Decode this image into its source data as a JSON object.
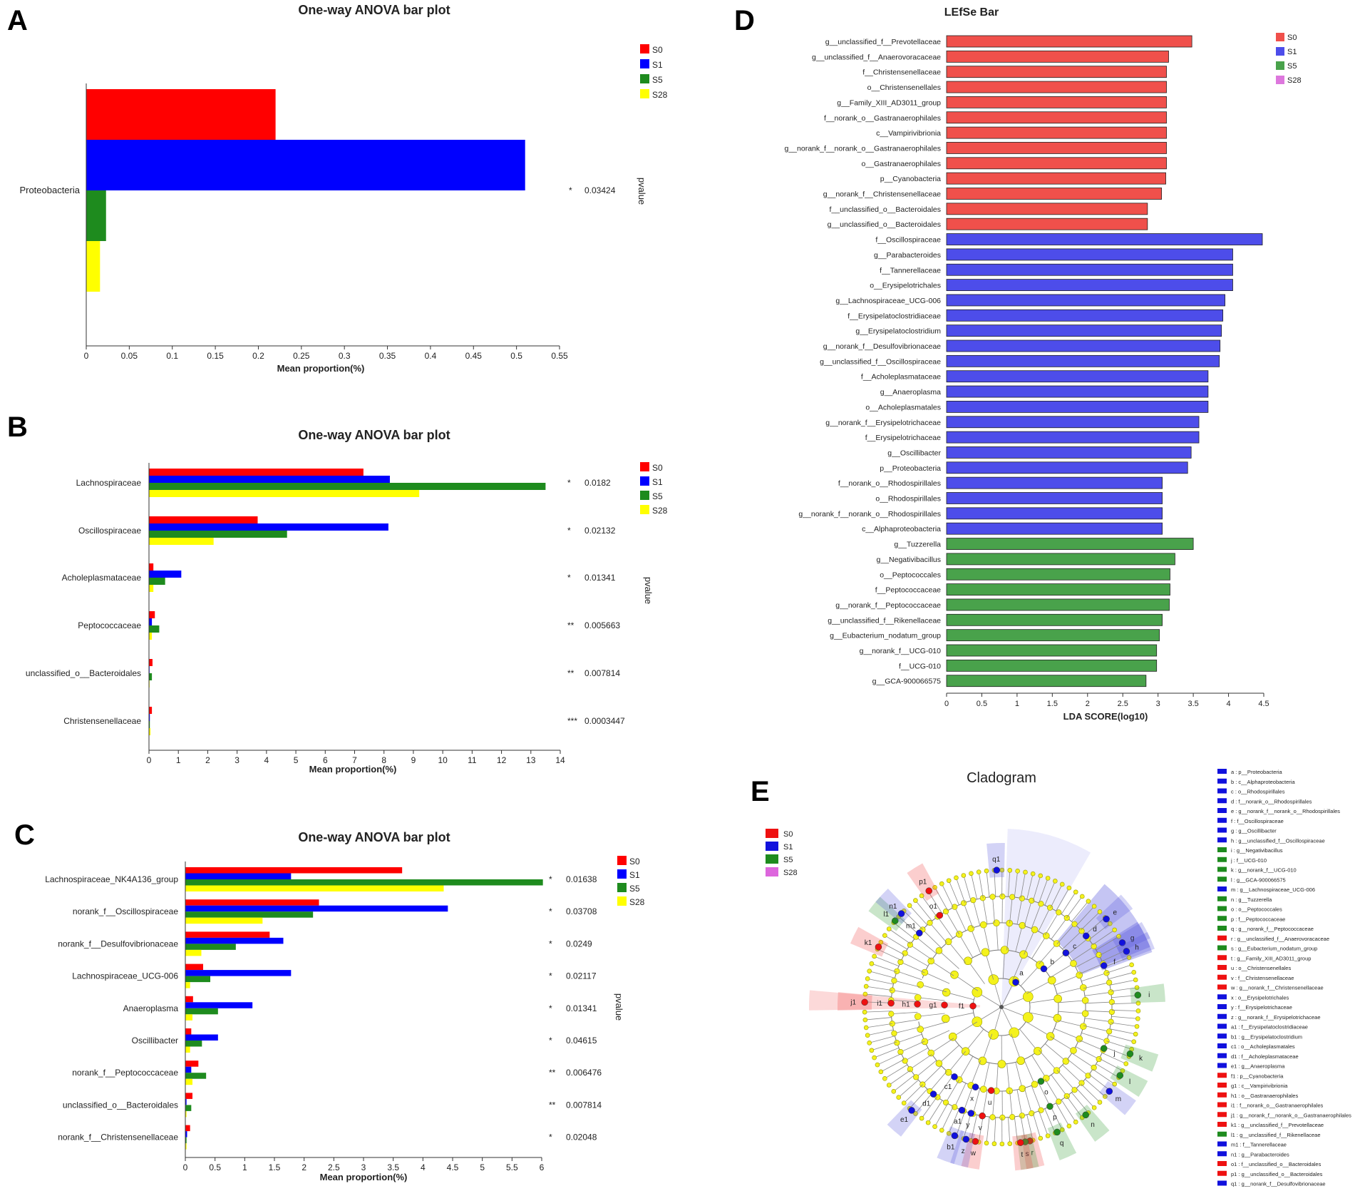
{
  "colors": {
    "S0": "#ff0000",
    "S1": "#0000ff",
    "S5": "#1e8b1e",
    "S28": "#ffff00",
    "ld_S0": "#f0504b",
    "ld_S1": "#4d4dea",
    "ld_S5": "#49a24b",
    "ld_S28": "#dd77dd",
    "node": "#f4f21c",
    "nodeStroke": "#9a9a00"
  },
  "chart_data": [
    {
      "id": "A",
      "panel_label": "A",
      "type": "bar",
      "orientation": "horizontal",
      "title": "One-way ANOVA bar plot",
      "xlabel": "Mean proportion(%)",
      "side_label": "pvalue",
      "xlim": [
        0,
        0.55
      ],
      "xticks": [
        0,
        0.05,
        0.1,
        0.15,
        0.2,
        0.25,
        0.3,
        0.35,
        0.4,
        0.45,
        0.5,
        0.55
      ],
      "xtick_labels": [
        "0",
        "0.05",
        "0.1",
        "0.15",
        "0.2",
        "0.25",
        "0.3",
        "0.35",
        "0.4",
        "0.45",
        "0.5",
        "0.55"
      ],
      "legend": [
        "S0",
        "S1",
        "S5",
        "S28"
      ],
      "categories": [
        "Proteobacteria"
      ],
      "series": [
        {
          "name": "S0",
          "values": [
            0.22
          ]
        },
        {
          "name": "S1",
          "values": [
            0.51
          ]
        },
        {
          "name": "S5",
          "values": [
            0.023
          ]
        },
        {
          "name": "S28",
          "values": [
            0.016
          ]
        }
      ],
      "sig": [
        "*"
      ],
      "pvalues": [
        "0.03424"
      ]
    },
    {
      "id": "B",
      "panel_label": "B",
      "type": "bar",
      "orientation": "horizontal",
      "title": "One-way ANOVA bar plot",
      "xlabel": "Mean proportion(%)",
      "side_label": "pvalue",
      "xlim": [
        0,
        14
      ],
      "xticks": [
        0,
        1,
        2,
        3,
        4,
        5,
        6,
        7,
        8,
        9,
        10,
        11,
        12,
        13,
        14
      ],
      "xtick_labels": [
        "0",
        "1",
        "2",
        "3",
        "4",
        "5",
        "6",
        "7",
        "8",
        "9",
        "10",
        "11",
        "12",
        "13",
        "14"
      ],
      "legend": [
        "S0",
        "S1",
        "S5",
        "S28"
      ],
      "categories": [
        "Lachnospiraceae",
        "Oscillospiraceae",
        "Acholeplasmataceae",
        "Peptococcaceae",
        "unclassified_o__Bacteroidales",
        "Christensenellaceae"
      ],
      "series": [
        {
          "name": "S0",
          "values": [
            7.3,
            3.7,
            0.15,
            0.2,
            0.12,
            0.1
          ]
        },
        {
          "name": "S1",
          "values": [
            8.2,
            8.15,
            1.1,
            0.1,
            0.02,
            0.03
          ]
        },
        {
          "name": "S5",
          "values": [
            13.5,
            4.7,
            0.55,
            0.35,
            0.1,
            0.03
          ]
        },
        {
          "name": "S28",
          "values": [
            9.2,
            2.2,
            0.15,
            0.1,
            0.02,
            0.05
          ]
        }
      ],
      "sig": [
        "*",
        "*",
        "*",
        "**",
        "**",
        "***"
      ],
      "pvalues": [
        "0.0182",
        "0.02132",
        "0.01341",
        "0.005663",
        "0.007814",
        "0.0003447"
      ]
    },
    {
      "id": "C",
      "panel_label": "C",
      "type": "bar",
      "orientation": "horizontal",
      "title": "One-way ANOVA bar plot",
      "xlabel": "Mean proportion(%)",
      "side_label": "pvalue",
      "xlim": [
        0,
        6
      ],
      "xticks": [
        0,
        0.5,
        1,
        1.5,
        2,
        2.5,
        3,
        3.5,
        4,
        4.5,
        5,
        5.5,
        6
      ],
      "xtick_labels": [
        "0",
        "0.5",
        "1",
        "1.5",
        "2",
        "2.5",
        "3",
        "3.5",
        "4",
        "4.5",
        "5",
        "5.5",
        "6"
      ],
      "legend": [
        "S0",
        "S1",
        "S5",
        "S28"
      ],
      "categories": [
        "Lachnospiraceae_NK4A136_group",
        "norank_f__Oscillospiraceae",
        "norank_f__Desulfovibrionaceae",
        "Lachnospiraceae_UCG-006",
        "Anaeroplasma",
        "Oscillibacter",
        "norank_f__Peptococcaceae",
        "unclassified_o__Bacteroidales",
        "norank_f__Christensenellaceae"
      ],
      "series": [
        {
          "name": "S0",
          "values": [
            3.65,
            2.25,
            1.42,
            0.3,
            0.13,
            0.1,
            0.22,
            0.12,
            0.08
          ]
        },
        {
          "name": "S1",
          "values": [
            1.78,
            4.42,
            1.65,
            1.78,
            1.13,
            0.55,
            0.1,
            0.02,
            0.03
          ]
        },
        {
          "name": "S5",
          "values": [
            6.02,
            2.15,
            0.85,
            0.42,
            0.55,
            0.28,
            0.35,
            0.1,
            0.02
          ]
        },
        {
          "name": "S28",
          "values": [
            4.35,
            1.3,
            0.27,
            0.08,
            0.12,
            0.08,
            0.12,
            0.02,
            0.02
          ]
        }
      ],
      "sig": [
        "*",
        "*",
        "*",
        "*",
        "*",
        "*",
        "**",
        "**",
        "*"
      ],
      "pvalues": [
        "0.01638",
        "0.03708",
        "0.0249",
        "0.02117",
        "0.01341",
        "0.04615",
        "0.006476",
        "0.007814",
        "0.02048"
      ]
    },
    {
      "id": "D",
      "panel_label": "D",
      "type": "bar",
      "orientation": "horizontal",
      "title": "LEfSe Bar",
      "xlabel": "LDA SCORE(log10)",
      "xlim": [
        0,
        4.5
      ],
      "xticks": [
        0,
        0.5,
        1,
        1.5,
        2,
        2.5,
        3,
        3.5,
        4,
        4.5
      ],
      "xtick_labels": [
        "0",
        "0.5",
        "1",
        "1.5",
        "2",
        "2.5",
        "3",
        "3.5",
        "4",
        "4.5"
      ],
      "legend": [
        "S0",
        "S1",
        "S5",
        "S28"
      ],
      "items": [
        {
          "label": "g__unclassified_f__Prevotellaceae",
          "group": "S0",
          "value": 3.48
        },
        {
          "label": "g__unclassified_f__Anaerovoracaceae",
          "group": "S0",
          "value": 3.15
        },
        {
          "label": "f__Christensenellaceae",
          "group": "S0",
          "value": 3.12
        },
        {
          "label": "o__Christensenellales",
          "group": "S0",
          "value": 3.12
        },
        {
          "label": "g__Family_XIII_AD3011_group",
          "group": "S0",
          "value": 3.12
        },
        {
          "label": "f__norank_o__Gastranaerophilales",
          "group": "S0",
          "value": 3.12
        },
        {
          "label": "c__Vampirivibrionia",
          "group": "S0",
          "value": 3.12
        },
        {
          "label": "g__norank_f__norank_o__Gastranaerophilales",
          "group": "S0",
          "value": 3.12
        },
        {
          "label": "o__Gastranaerophilales",
          "group": "S0",
          "value": 3.12
        },
        {
          "label": "p__Cyanobacteria",
          "group": "S0",
          "value": 3.11
        },
        {
          "label": "g__norank_f__Christensenellaceae",
          "group": "S0",
          "value": 3.05
        },
        {
          "label": "f__unclassified_o__Bacteroidales",
          "group": "S0",
          "value": 2.85
        },
        {
          "label": "g__unclassified_o__Bacteroidales",
          "group": "S0",
          "value": 2.85
        },
        {
          "label": "f__Oscillospiraceae",
          "group": "S1",
          "value": 4.48
        },
        {
          "label": "g__Parabacteroides",
          "group": "S1",
          "value": 4.06
        },
        {
          "label": "f__Tannerellaceae",
          "group": "S1",
          "value": 4.06
        },
        {
          "label": "o__Erysipelotrichales",
          "group": "S1",
          "value": 4.06
        },
        {
          "label": "g__Lachnospiraceae_UCG-006",
          "group": "S1",
          "value": 3.95
        },
        {
          "label": "f__Erysipelatoclostridiaceae",
          "group": "S1",
          "value": 3.92
        },
        {
          "label": "g__Erysipelatoclostridium",
          "group": "S1",
          "value": 3.9
        },
        {
          "label": "g__norank_f__Desulfovibrionaceae",
          "group": "S1",
          "value": 3.88
        },
        {
          "label": "g__unclassified_f__Oscillospiraceae",
          "group": "S1",
          "value": 3.87
        },
        {
          "label": "f__Acholeplasmataceae",
          "group": "S1",
          "value": 3.71
        },
        {
          "label": "g__Anaeroplasma",
          "group": "S1",
          "value": 3.71
        },
        {
          "label": "o__Acholeplasmatales",
          "group": "S1",
          "value": 3.71
        },
        {
          "label": "g__norank_f__Erysipelotrichaceae",
          "group": "S1",
          "value": 3.58
        },
        {
          "label": "f__Erysipelotrichaceae",
          "group": "S1",
          "value": 3.58
        },
        {
          "label": "g__Oscillibacter",
          "group": "S1",
          "value": 3.47
        },
        {
          "label": "p__Proteobacteria",
          "group": "S1",
          "value": 3.42
        },
        {
          "label": "f__norank_o__Rhodospirillales",
          "group": "S1",
          "value": 3.06
        },
        {
          "label": "o__Rhodospirillales",
          "group": "S1",
          "value": 3.06
        },
        {
          "label": "g__norank_f__norank_o__Rhodospirillales",
          "group": "S1",
          "value": 3.06
        },
        {
          "label": "c__Alphaproteobacteria",
          "group": "S1",
          "value": 3.06
        },
        {
          "label": "g__Tuzzerella",
          "group": "S5",
          "value": 3.5
        },
        {
          "label": "g__Negativibacillus",
          "group": "S5",
          "value": 3.24
        },
        {
          "label": "o__Peptococcales",
          "group": "S5",
          "value": 3.17
        },
        {
          "label": "f__Peptococcaceae",
          "group": "S5",
          "value": 3.17
        },
        {
          "label": "g__norank_f__Peptococcaceae",
          "group": "S5",
          "value": 3.16
        },
        {
          "label": "g__unclassified_f__Rikenellaceae",
          "group": "S5",
          "value": 3.06
        },
        {
          "label": "g__Eubacterium_nodatum_group",
          "group": "S5",
          "value": 3.02
        },
        {
          "label": "g__norank_f__UCG-010",
          "group": "S5",
          "value": 2.98
        },
        {
          "label": "f__UCG-010",
          "group": "S5",
          "value": 2.98
        },
        {
          "label": "g__GCA-900066575",
          "group": "S5",
          "value": 2.83
        }
      ]
    }
  ],
  "cladogram": {
    "panel_label": "E",
    "title": "Cladogram",
    "legend": [
      "S0",
      "S1",
      "S5",
      "S28"
    ],
    "key": [
      {
        "text": "a : p__Proteobacteria",
        "group": "S1"
      },
      {
        "text": "b : c__Alphaproteobacteria",
        "group": "S1"
      },
      {
        "text": "c : o__Rhodospirillales",
        "group": "S1"
      },
      {
        "text": "d : f__norank_o__Rhodospirillales",
        "group": "S1"
      },
      {
        "text": "e : g__norank_f__norank_o__Rhodospirillales",
        "group": "S1"
      },
      {
        "text": "f : f__Oscillospiraceae",
        "group": "S1"
      },
      {
        "text": "g : g__Oscillibacter",
        "group": "S1"
      },
      {
        "text": "h : g__unclassified_f__Oscillospiraceae",
        "group": "S1"
      },
      {
        "text": "i : g__Negativibacillus",
        "group": "S5"
      },
      {
        "text": "j : f__UCG-010",
        "group": "S5"
      },
      {
        "text": "k : g__norank_f__UCG-010",
        "group": "S5"
      },
      {
        "text": "l : g__GCA-900066575",
        "group": "S5"
      },
      {
        "text": "m : g__Lachnospiraceae_UCG-006",
        "group": "S1"
      },
      {
        "text": "n : g__Tuzzerella",
        "group": "S5"
      },
      {
        "text": "o : o__Peptococcales",
        "group": "S5"
      },
      {
        "text": "p : f__Peptococcaceae",
        "group": "S5"
      },
      {
        "text": "q : g__norank_f__Peptococcaceae",
        "group": "S5"
      },
      {
        "text": "r : g__unclassified_f__Anaerovoracaceae",
        "group": "S0"
      },
      {
        "text": "s : g__Eubacterium_nodatum_group",
        "group": "S5"
      },
      {
        "text": "t : g__Family_XIII_AD3011_group",
        "group": "S0"
      },
      {
        "text": "u : o__Christensenellales",
        "group": "S0"
      },
      {
        "text": "v : f__Christensenellaceae",
        "group": "S0"
      },
      {
        "text": "w : g__norank_f__Christensenellaceae",
        "group": "S0"
      },
      {
        "text": "x : o__Erysipelotrichales",
        "group": "S1"
      },
      {
        "text": "y : f__Erysipelotrichaceae",
        "group": "S1"
      },
      {
        "text": "z : g__norank_f__Erysipelotrichaceae",
        "group": "S1"
      },
      {
        "text": "a1 : f__Erysipelatoclostridiaceae",
        "group": "S1"
      },
      {
        "text": "b1 : g__Erysipelatoclostridium",
        "group": "S1"
      },
      {
        "text": "c1 : o__Acholeplasmatales",
        "group": "S1"
      },
      {
        "text": "d1 : f__Acholeplasmataceae",
        "group": "S1"
      },
      {
        "text": "e1 : g__Anaeroplasma",
        "group": "S1"
      },
      {
        "text": "f1 : p__Cyanobacteria",
        "group": "S0"
      },
      {
        "text": "g1 : c__Vampirivibrionia",
        "group": "S0"
      },
      {
        "text": "h1 : o__Gastranaerophilales",
        "group": "S0"
      },
      {
        "text": "i1 : f__norank_o__Gastranaerophilales",
        "group": "S0"
      },
      {
        "text": "j1 : g__norank_f__norank_o__Gastranaerophilales",
        "group": "S0"
      },
      {
        "text": "k1 : g__unclassified_f__Prevotellaceae",
        "group": "S0"
      },
      {
        "text": "l1 : g__unclassified_f__Rikenellaceae",
        "group": "S5"
      },
      {
        "text": "m1 : f__Tannerellaceae",
        "group": "S1"
      },
      {
        "text": "n1 : g__Parabacteroides",
        "group": "S1"
      },
      {
        "text": "o1 : f__unclassified_o__Bacteroidales",
        "group": "S0"
      },
      {
        "text": "p1 : g__unclassified_o__Bacteroidales",
        "group": "S0"
      },
      {
        "text": "q1 : g__norank_f__Desulfovibrionaceae",
        "group": "S1"
      }
    ],
    "node_labels": [
      {
        "t": "a",
        "g": "S1",
        "deg": -60,
        "lvl": 1
      },
      {
        "t": "b",
        "g": "S1",
        "deg": -42,
        "lvl": 2
      },
      {
        "t": "c",
        "g": "S1",
        "deg": -40,
        "lvl": 3
      },
      {
        "t": "d",
        "g": "S1",
        "deg": -40,
        "lvl": 4
      },
      {
        "t": "e",
        "g": "S1",
        "deg": -40,
        "lvl": 5
      },
      {
        "t": "f",
        "g": "S1",
        "deg": -22,
        "lvl": 4
      },
      {
        "t": "g",
        "g": "S1",
        "deg": -28,
        "lvl": 5
      },
      {
        "t": "h",
        "g": "S1",
        "deg": -24,
        "lvl": 5
      },
      {
        "t": "i",
        "g": "S5",
        "deg": -5,
        "lvl": 5
      },
      {
        "t": "j",
        "g": "S5",
        "deg": 22,
        "lvl": 4
      },
      {
        "t": "k",
        "g": "S5",
        "deg": 20,
        "lvl": 5
      },
      {
        "t": "l",
        "g": "S5",
        "deg": 30,
        "lvl": 5
      },
      {
        "t": "m",
        "g": "S1",
        "deg": 38,
        "lvl": 5
      },
      {
        "t": "n",
        "g": "S5",
        "deg": 52,
        "lvl": 5
      },
      {
        "t": "o",
        "g": "S5",
        "deg": 62,
        "lvl": 3
      },
      {
        "t": "p",
        "g": "S5",
        "deg": 64,
        "lvl": 4
      },
      {
        "t": "q",
        "g": "S5",
        "deg": 66,
        "lvl": 5
      },
      {
        "t": "r",
        "g": "S0",
        "deg": 78,
        "lvl": 5
      },
      {
        "t": "s",
        "g": "S5",
        "deg": 80,
        "lvl": 5
      },
      {
        "t": "t",
        "g": "S0",
        "deg": 82,
        "lvl": 5
      },
      {
        "t": "u",
        "g": "S0",
        "deg": 97,
        "lvl": 3
      },
      {
        "t": "v",
        "g": "S0",
        "deg": 100,
        "lvl": 4
      },
      {
        "t": "w",
        "g": "S0",
        "deg": 101,
        "lvl": 5
      },
      {
        "t": "x",
        "g": "S1",
        "deg": 108,
        "lvl": 3
      },
      {
        "t": "y",
        "g": "S1",
        "deg": 106,
        "lvl": 4
      },
      {
        "t": "z",
        "g": "S1",
        "deg": 105,
        "lvl": 5
      },
      {
        "t": "a1",
        "g": "S1",
        "deg": 111,
        "lvl": 4
      },
      {
        "t": "b1",
        "g": "S1",
        "deg": 110,
        "lvl": 5
      },
      {
        "t": "c1",
        "g": "S1",
        "deg": 124,
        "lvl": 3
      },
      {
        "t": "d1",
        "g": "S1",
        "deg": 128,
        "lvl": 4
      },
      {
        "t": "e1",
        "g": "S1",
        "deg": 131,
        "lvl": 5
      },
      {
        "t": "f1",
        "g": "S0",
        "deg": 182,
        "lvl": 1
      },
      {
        "t": "g1",
        "g": "S0",
        "deg": 182,
        "lvl": 2
      },
      {
        "t": "h1",
        "g": "S0",
        "deg": 182,
        "lvl": 3
      },
      {
        "t": "i1",
        "g": "S0",
        "deg": 182,
        "lvl": 4
      },
      {
        "t": "j1",
        "g": "S0",
        "deg": 182,
        "lvl": 5
      },
      {
        "t": "k1",
        "g": "S0",
        "deg": 206,
        "lvl": 5
      },
      {
        "t": "l1",
        "g": "S5",
        "deg": 219,
        "lvl": 5
      },
      {
        "t": "m1",
        "g": "S1",
        "deg": 222,
        "lvl": 4
      },
      {
        "t": "n1",
        "g": "S1",
        "deg": 223,
        "lvl": 5
      },
      {
        "t": "o1",
        "g": "S0",
        "deg": 236,
        "lvl": 4
      },
      {
        "t": "p1",
        "g": "S0",
        "deg": 238,
        "lvl": 5
      },
      {
        "t": "q1",
        "g": "S1",
        "deg": 268,
        "lvl": 5
      }
    ]
  }
}
